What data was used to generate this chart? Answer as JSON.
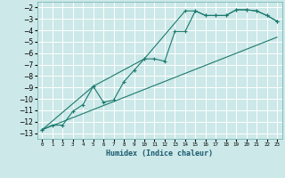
{
  "title": "",
  "xlabel": "Humidex (Indice chaleur)",
  "bg_color": "#cce8e8",
  "grid_color": "#ffffff",
  "line_color": "#1a7a6e",
  "xlim": [
    -0.5,
    23.5
  ],
  "ylim": [
    -13.5,
    -1.5
  ],
  "yticks": [
    -13,
    -12,
    -11,
    -10,
    -9,
    -8,
    -7,
    -6,
    -5,
    -4,
    -3,
    -2
  ],
  "xticks": [
    0,
    1,
    2,
    3,
    4,
    5,
    6,
    7,
    8,
    9,
    10,
    11,
    12,
    13,
    14,
    15,
    16,
    17,
    18,
    19,
    20,
    21,
    22,
    23
  ],
  "line1_x": [
    0,
    1,
    2,
    3,
    4,
    5,
    6,
    7,
    8,
    9,
    10,
    11,
    12,
    13,
    14,
    15,
    16,
    17,
    18,
    19,
    20,
    21,
    22,
    23
  ],
  "line1_y": [
    -12.7,
    -12.3,
    -12.3,
    -11.1,
    -10.5,
    -8.9,
    -10.3,
    -10.1,
    -8.5,
    -7.5,
    -6.5,
    -6.5,
    -6.7,
    -4.1,
    -4.1,
    -2.3,
    -2.7,
    -2.7,
    -2.7,
    -2.2,
    -2.2,
    -2.3,
    -2.7,
    -3.2
  ],
  "line2_x": [
    0,
    5,
    10,
    14,
    15,
    16,
    17,
    18,
    19,
    20,
    21,
    22,
    23
  ],
  "line2_y": [
    -12.7,
    -8.9,
    -6.5,
    -2.3,
    -2.3,
    -2.7,
    -2.7,
    -2.7,
    -2.2,
    -2.2,
    -2.3,
    -2.7,
    -3.2
  ],
  "line3_x": [
    0,
    23
  ],
  "line3_y": [
    -12.7,
    -4.6
  ],
  "marker": "+"
}
